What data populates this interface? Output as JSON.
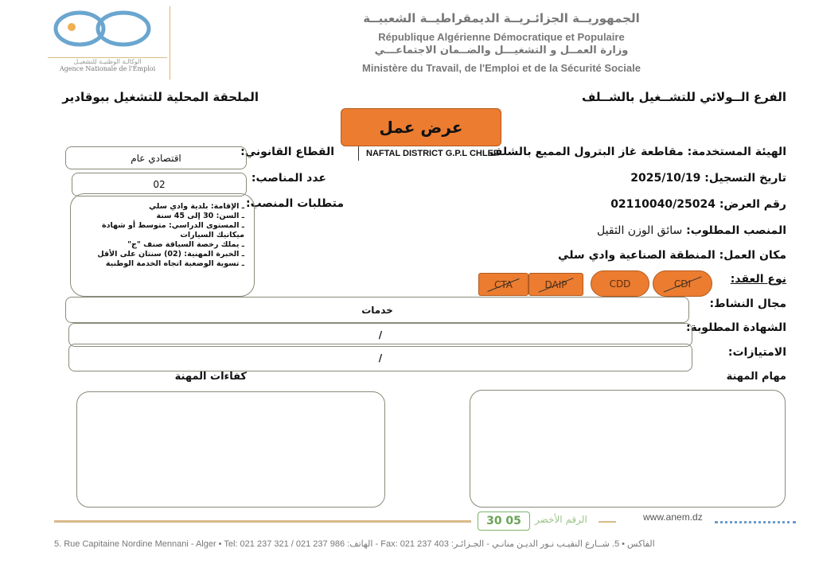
{
  "logo": {
    "arabic": "الوكالـة الوطنيـة للتشغيـل",
    "french": "Agence Nationale de l'Emploi"
  },
  "header": {
    "line1": "الجمهوريــة الجزائـريــة الديمقراطيــة الشعبيــة",
    "line2": "République Algérienne Démocratique et Populaire",
    "line3": "وزارة العمــل و التشغيـــل والضــمان الاجتماعـــي",
    "line4": "Ministère du Travail, de l'Emploi et de la Sécurité Sociale"
  },
  "branch_right": "الفرع الــولائي للتشــغيل بالشــلف",
  "branch_left": "الملحقة المحلية للتشغيل ببوقادير",
  "title": "عرض عمل",
  "fields": {
    "employer_label": "الهيئة المستخدمة:",
    "employer_value": "مقاطعة غاز البترول المميع بالشلف",
    "employer_latin": "NAFTAL DISTRICT G.P.L CHLEF",
    "date_label": "تاريخ التسجيل:",
    "date_value": "2025/10/19",
    "offer_label": "رقم العرض:",
    "offer_value": "02110040/25024",
    "position_label": "المنصب المطلوب:",
    "position_value": "سائق الوزن الثقيل",
    "workplace_label": "مكان العمل:",
    "workplace_value": "المنطقة الصناعية وادي سلي",
    "contract_label": "نوع العقد:",
    "activity_label": "مجال النشاط:",
    "activity_value": "خدمات",
    "diploma_label": "الشهادة المطلوبة:",
    "diploma_value": "/",
    "benefits_label": "الامتيازات:",
    "benefits_value": "/",
    "tasks_label": "مهام المهنة",
    "skills_label": "كفاءات المهنة",
    "sector_label": "القطاع القانوني:",
    "sector_value": "اقتصادي عام",
    "posts_label": "عدد المناصب:",
    "posts_value": "02",
    "requirements_label": "متطلبات المنصب:"
  },
  "requirements": [
    "ـ الإقامة: بلدية وادي سلي",
    "ـ السن: 30 إلى 45 سنة",
    "ـ المستوى الدراسي: متوسط أو شهادة ميكانيك السيارات",
    "ـ يملك رخصة السياقة صنف \"ج\"",
    "ـ الخبرة المهنية: (02) سنتان على الأقل",
    "ـ تسوية الوضعية اتجاه الخدمة الوطنية"
  ],
  "contracts": [
    {
      "label": "CTA",
      "crossed": true
    },
    {
      "label": "DAIP",
      "crossed": true
    },
    {
      "label": "CDD",
      "crossed": false
    },
    {
      "label": "CDI",
      "crossed": true
    }
  ],
  "footer": {
    "green_number": "30 05",
    "green_label": "الرقم الأخضر",
    "website": "www.anem.dz",
    "address": "5. Rue Capitaine Nordine Mennani - Alger • Tel: 021 237 321 / 021 237 986 :الهاتف - Fax: 021 237 403 :الفاكس • 5. شــارع النقيـب نـور الديـن منانـي - الجـزائـر"
  },
  "colors": {
    "accent": "#ec7c30",
    "logo": "#6aa6cf",
    "footer_line": "#d9b98a",
    "green": "#7fb36a"
  }
}
